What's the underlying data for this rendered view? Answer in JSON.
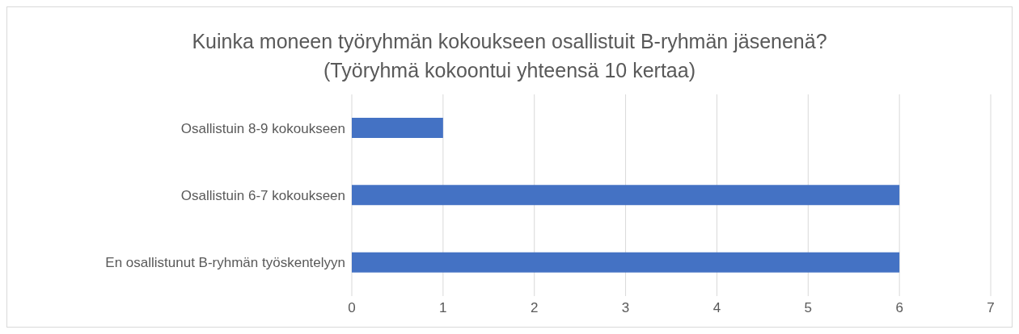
{
  "chart_data": {
    "type": "bar",
    "orientation": "horizontal",
    "title": "Kuinka moneen työryhmän kokoukseen osallistuit B-ryhmän jäsenenä?",
    "subtitle": "(Työryhmä kokoontui yhteensä 10 kertaa)",
    "categories": [
      "Osallistuin 8-9 kokoukseen",
      "Osallistuin 6-7 kokoukseen",
      "En osallistunut B-ryhmän työskentelyyn"
    ],
    "values": [
      1,
      6,
      6
    ],
    "color": "#4472c4",
    "xlim": [
      0,
      7
    ],
    "xticks": [
      0,
      1,
      2,
      3,
      4,
      5,
      6,
      7
    ],
    "grid": "x"
  }
}
